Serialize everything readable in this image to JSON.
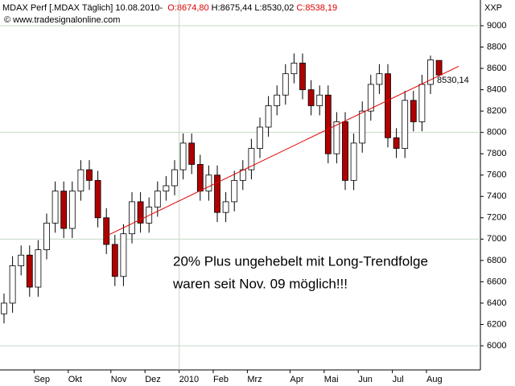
{
  "chart_data": {
    "type": "candlestick",
    "title": "MDAX Perf [.MDAX  Täglich]",
    "date": "10.08.2010",
    "quote": [
      "O:8674,80",
      "H:8675,44",
      "L:8530,02",
      "C:8538,19"
    ],
    "quote_colors": [
      "#e00000",
      "#000000",
      "#000000",
      "#e00000"
    ],
    "source": "© www.tradesignalonline.com",
    "axis_label": "XXP",
    "annotation": [
      "20% Plus ungehebelt mit Long-Trendfolge",
      "waren seit Nov. 09 möglich!!!"
    ],
    "annotation_color": "#1010d0",
    "categories": [
      null,
      null,
      null,
      null,
      "Sep",
      null,
      null,
      null,
      "Okt",
      null,
      null,
      null,
      null,
      "Nov",
      null,
      null,
      null,
      "Dez",
      null,
      null,
      null,
      "2010",
      null,
      null,
      null,
      "Feb",
      null,
      null,
      null,
      "Mrz",
      null,
      null,
      null,
      null,
      "Apr",
      null,
      null,
      null,
      "Mai",
      null,
      null,
      null,
      "Jun",
      null,
      null,
      null,
      "Jul",
      null,
      null,
      null,
      "Aug",
      null
    ],
    "open": [
      6300,
      6400,
      6750,
      6850,
      6550,
      6900,
      7150,
      7450,
      7100,
      7450,
      7650,
      7550,
      7200,
      6950,
      6650,
      7050,
      7350,
      7150,
      7300,
      7450,
      7500,
      7650,
      7900,
      7700,
      7450,
      7600,
      7250,
      7350,
      7550,
      7650,
      7850,
      8050,
      8250,
      8350,
      8550,
      8650,
      8400,
      8250,
      8350,
      7800,
      8100,
      7550,
      7900,
      8200,
      8450,
      8550,
      7950,
      7850,
      8300,
      8100,
      8450,
      8674.8
    ],
    "high": [
      6490,
      6840,
      6940,
      6940,
      6990,
      7240,
      7540,
      7540,
      7540,
      7740,
      7740,
      7640,
      7290,
      7040,
      7140,
      7440,
      7440,
      7390,
      7540,
      7590,
      7740,
      7990,
      7990,
      7790,
      7690,
      7690,
      7440,
      7640,
      7740,
      7940,
      8140,
      8340,
      8440,
      8640,
      8740,
      8740,
      8490,
      8440,
      8440,
      8190,
      8190,
      7990,
      8290,
      8540,
      8640,
      8640,
      8040,
      8390,
      8390,
      8540,
      8720,
      8675.44
    ],
    "low": [
      6210,
      6310,
      6660,
      6460,
      6460,
      6810,
      7060,
      7010,
      7010,
      7360,
      7460,
      7110,
      6860,
      6560,
      6560,
      6960,
      7060,
      7060,
      7210,
      7360,
      7410,
      7560,
      7610,
      7360,
      7360,
      7160,
      7160,
      7260,
      7460,
      7560,
      7760,
      7960,
      8160,
      8260,
      8460,
      8310,
      8160,
      8160,
      7710,
      7710,
      7460,
      7460,
      7810,
      8110,
      8360,
      7860,
      7760,
      7760,
      8010,
      8010,
      8360,
      8530.02
    ],
    "close": [
      6400,
      6750,
      6850,
      6550,
      6900,
      7150,
      7450,
      7100,
      7450,
      7650,
      7550,
      7200,
      6950,
      6650,
      7050,
      7350,
      7150,
      7300,
      7450,
      7500,
      7650,
      7900,
      7700,
      7450,
      7600,
      7250,
      7350,
      7550,
      7650,
      7850,
      8050,
      8250,
      8350,
      8550,
      8650,
      8400,
      8250,
      8350,
      7800,
      8100,
      7550,
      7900,
      8200,
      8450,
      8550,
      7950,
      7850,
      8300,
      8100,
      8450,
      8680,
      8538.19
    ],
    "up_color": "#ffffff",
    "down_color": "#b00000",
    "trendline": {
      "values": [
        7040,
        8620
      ],
      "label": "8530,14",
      "color": "#e00000"
    },
    "ylim": [
      5774,
      9241
    ],
    "yticks": [
      6000,
      6200,
      6400,
      6600,
      6800,
      7000,
      7200,
      7400,
      7600,
      7800,
      8000,
      8200,
      8400,
      8600,
      8800,
      9000
    ],
    "grid": true
  }
}
